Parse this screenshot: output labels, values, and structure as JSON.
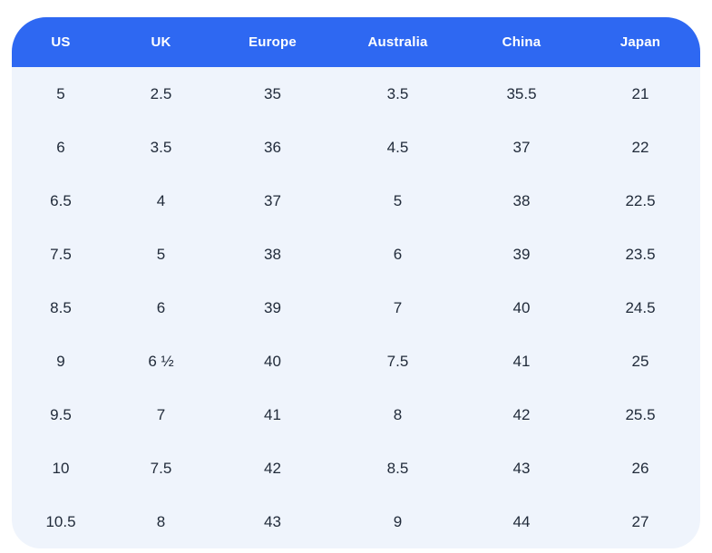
{
  "chart_data": {
    "type": "table",
    "columns": [
      "US",
      "UK",
      "Europe",
      "Australia",
      "China",
      "Japan"
    ],
    "rows": [
      [
        "5",
        "2.5",
        "35",
        "3.5",
        "35.5",
        "21"
      ],
      [
        "6",
        "3.5",
        "36",
        "4.5",
        "37",
        "22"
      ],
      [
        "6.5",
        "4",
        "37",
        "5",
        "38",
        "22.5"
      ],
      [
        "7.5",
        "5",
        "38",
        "6",
        "39",
        "23.5"
      ],
      [
        "8.5",
        "6",
        "39",
        "7",
        "40",
        "24.5"
      ],
      [
        "9",
        "6 ½",
        "40",
        "7.5",
        "41",
        "25"
      ],
      [
        "9.5",
        "7",
        "41",
        "8",
        "42",
        "25.5"
      ],
      [
        "10",
        "7.5",
        "42",
        "8.5",
        "43",
        "26"
      ],
      [
        "10.5",
        "8",
        "43",
        "9",
        "44",
        "27"
      ]
    ]
  },
  "colors": {
    "page_bg": "#ffffff",
    "header_bg": "#2e68f2",
    "header_text": "#ffffff",
    "body_bg": "#eff4fc",
    "body_text": "#212b3a"
  }
}
